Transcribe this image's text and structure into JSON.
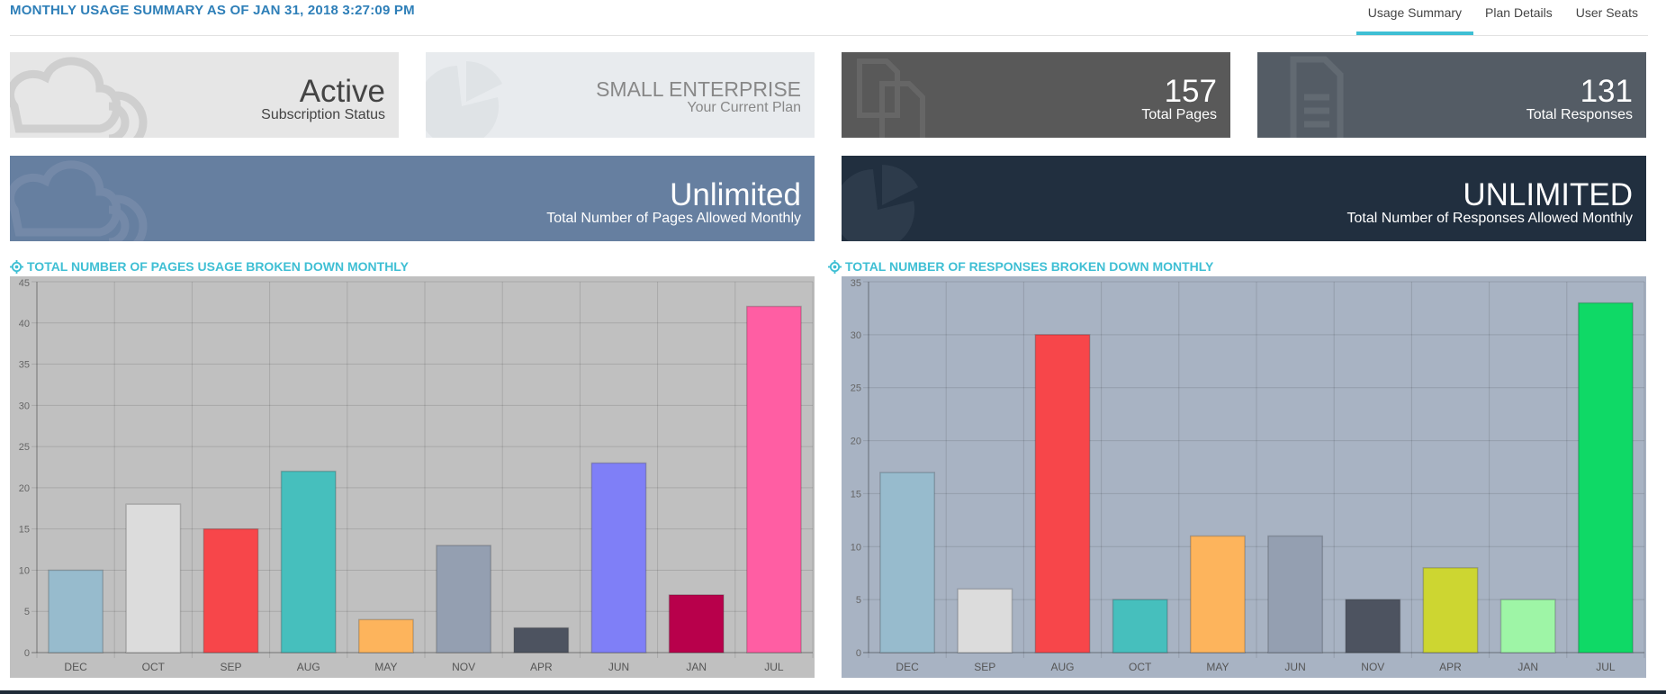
{
  "header": {
    "title": "MONTHLY USAGE SUMMARY AS OF JAN 31, 2018 3:27:09 PM"
  },
  "tabs": [
    {
      "label": "Usage Summary",
      "active": true
    },
    {
      "label": "Plan Details",
      "active": false
    },
    {
      "label": "User Seats",
      "active": false
    }
  ],
  "cards": {
    "status": {
      "value": "Active",
      "label": "Subscription Status",
      "icon": "cloud-icon"
    },
    "plan": {
      "value": "SMALL ENTERPRISE",
      "label": "Your Current Plan",
      "icon": "pie-icon"
    },
    "pages": {
      "value": "157",
      "label": "Total Pages",
      "icon": "documents-icon"
    },
    "responses": {
      "value": "131",
      "label": "Total Responses",
      "icon": "document-icon"
    },
    "pages_allowed": {
      "value": "Unlimited",
      "label": "Total Number of Pages Allowed Monthly",
      "icon": "cloud-icon"
    },
    "responses_allowed": {
      "value": "UNLIMITED",
      "label": "Total Number of Responses Allowed Monthly",
      "icon": "pie-icon"
    }
  },
  "colors": {
    "accent": "#3fbfd4",
    "title_blue": "#2e7fb8"
  },
  "chart_data": [
    {
      "type": "bar",
      "title": "TOTAL NUMBER OF PAGES USAGE BROKEN DOWN MONTHLY",
      "categories": [
        "DEC",
        "OCT",
        "SEP",
        "AUG",
        "MAY",
        "NOV",
        "APR",
        "JUN",
        "JAN",
        "JUL"
      ],
      "values": [
        10,
        18,
        15,
        22,
        4,
        13,
        3,
        23,
        7,
        42
      ],
      "bar_colors": [
        "#97bbcd",
        "#dcdcdc",
        "#f7464a",
        "#46bfbd",
        "#fdb45c",
        "#949fb1",
        "#4d5360",
        "#7f7ff7",
        "#b8004b",
        "#ff5ea3"
      ],
      "ylim": [
        0,
        45
      ],
      "yticks": [
        0,
        5,
        10,
        15,
        20,
        25,
        30,
        35,
        40,
        45
      ],
      "background": "#c0c0c0",
      "xlabel": "",
      "ylabel": ""
    },
    {
      "type": "bar",
      "title": "TOTAL NUMBER OF RESPONSES BROKEN DOWN MONTHLY",
      "categories": [
        "DEC",
        "SEP",
        "AUG",
        "OCT",
        "MAY",
        "JUN",
        "NOV",
        "APR",
        "JAN",
        "JUL"
      ],
      "values": [
        17,
        6,
        30,
        5,
        11,
        11,
        5,
        8,
        5,
        33
      ],
      "bar_colors": [
        "#97bbcd",
        "#dcdcdc",
        "#f7464a",
        "#46bfbd",
        "#fdb45c",
        "#949fb1",
        "#4d5360",
        "#cdd631",
        "#9ef5a6",
        "#0fd966"
      ],
      "ylim": [
        0,
        35
      ],
      "yticks": [
        0,
        5,
        10,
        15,
        20,
        25,
        30,
        35
      ],
      "background": "#a8b3c3",
      "xlabel": "",
      "ylabel": ""
    }
  ]
}
